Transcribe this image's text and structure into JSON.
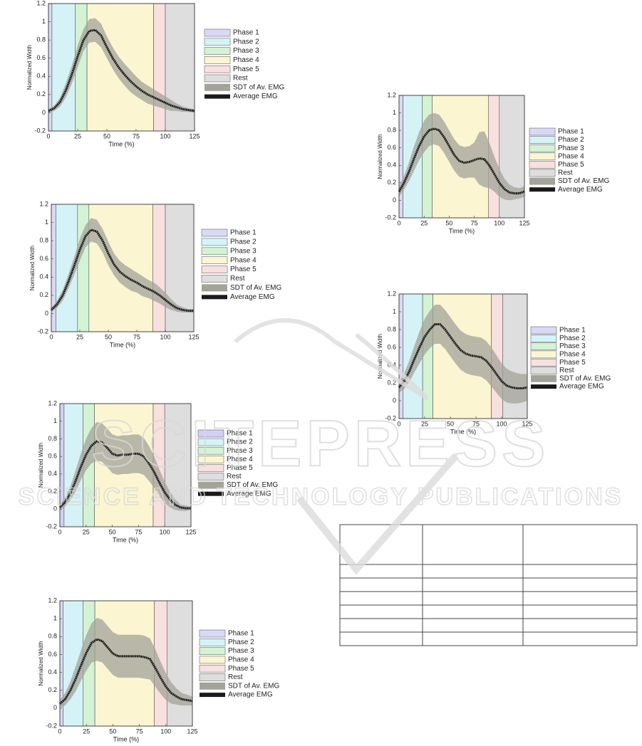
{
  "chart_data": [
    {
      "type": "line",
      "x_label": "Time (%)",
      "y_label": "Normalized Width",
      "x": [
        0,
        5,
        10,
        15,
        20,
        25,
        30,
        35,
        40,
        45,
        50,
        55,
        60,
        65,
        70,
        75,
        80,
        85,
        90,
        95,
        100,
        105,
        110,
        115,
        120,
        125
      ],
      "xlim": [
        0,
        125
      ],
      "ylim": [
        -0.2,
        1.2
      ],
      "xticks": [
        0,
        25,
        50,
        75,
        100,
        125
      ],
      "yticks": [
        -0.2,
        0,
        0.2,
        0.4,
        0.6,
        0.8,
        1,
        1.2
      ],
      "regions": {
        "names": [
          "Phase 1",
          "Phase 2",
          "Phase 3",
          "Phase 4",
          "Phase 5",
          "Rest"
        ],
        "colors": [
          "#d9d9f7",
          "#d5f3f6",
          "#d4f2d4",
          "#fbf6d1",
          "#f8e0de",
          "#dedede"
        ],
        "edges": [
          0,
          3,
          23,
          33,
          90,
          100,
          125
        ]
      },
      "band": {
        "name": "SDT of Av. EMG",
        "color": "#a3a39a",
        "values": [
          0.02,
          0.03,
          0.05,
          0.08,
          0.1,
          0.12,
          0.12,
          0.13,
          0.13,
          0.13,
          0.12,
          0.12,
          0.12,
          0.12,
          0.12,
          0.11,
          0.1,
          0.1,
          0.09,
          0.08,
          0.07,
          0.06,
          0.04,
          0.03,
          0.02,
          0.02
        ]
      },
      "series": [
        {
          "name": "Average EMG",
          "color": "#1a1a1a",
          "values": [
            0.02,
            0.05,
            0.12,
            0.25,
            0.42,
            0.62,
            0.8,
            0.9,
            0.91,
            0.85,
            0.72,
            0.6,
            0.5,
            0.42,
            0.35,
            0.29,
            0.24,
            0.2,
            0.17,
            0.14,
            0.11,
            0.08,
            0.06,
            0.04,
            0.03,
            0.02
          ]
        }
      ]
    },
    {
      "type": "line",
      "x_label": "Time (%)",
      "y_label": "Normalized Width",
      "x": [
        0,
        5,
        10,
        15,
        20,
        25,
        30,
        35,
        40,
        45,
        50,
        55,
        60,
        65,
        70,
        75,
        80,
        85,
        90,
        95,
        100,
        105,
        110,
        115,
        120,
        125
      ],
      "xlim": [
        0,
        125
      ],
      "ylim": [
        -0.2,
        1.2
      ],
      "xticks": [
        0,
        25,
        50,
        75,
        100,
        125
      ],
      "yticks": [
        -0.2,
        0,
        0.2,
        0.4,
        0.6,
        0.8,
        1,
        1.2
      ],
      "regions": {
        "names": [
          "Phase 1",
          "Phase 2",
          "Phase 3",
          "Phase 4",
          "Phase 5",
          "Rest"
        ],
        "colors": [
          "#d9d9f7",
          "#d5f3f6",
          "#d4f2d4",
          "#fbf6d1",
          "#f8e0de",
          "#dedede"
        ],
        "edges": [
          0,
          4,
          23,
          33,
          89,
          100,
          125
        ]
      },
      "band": {
        "name": "SDT of Av. EMG",
        "color": "#a3a39a",
        "values": [
          0.02,
          0.04,
          0.06,
          0.08,
          0.1,
          0.12,
          0.12,
          0.13,
          0.13,
          0.13,
          0.13,
          0.12,
          0.12,
          0.12,
          0.12,
          0.11,
          0.11,
          0.1,
          0.1,
          0.09,
          0.08,
          0.06,
          0.04,
          0.03,
          0.02,
          0.02
        ]
      },
      "series": [
        {
          "name": "Average EMG",
          "color": "#1a1a1a",
          "values": [
            0.04,
            0.1,
            0.2,
            0.35,
            0.52,
            0.7,
            0.85,
            0.92,
            0.9,
            0.8,
            0.66,
            0.54,
            0.46,
            0.41,
            0.37,
            0.34,
            0.3,
            0.27,
            0.24,
            0.2,
            0.15,
            0.1,
            0.06,
            0.04,
            0.03,
            0.03
          ]
        }
      ]
    },
    {
      "type": "line",
      "x_label": "Time (%)",
      "y_label": "Normalized Width",
      "x": [
        0,
        5,
        10,
        15,
        20,
        25,
        30,
        35,
        40,
        45,
        50,
        55,
        60,
        65,
        70,
        75,
        80,
        85,
        90,
        95,
        100,
        105,
        110,
        115,
        120,
        125
      ],
      "xlim": [
        0,
        125
      ],
      "ylim": [
        -0.2,
        1.2
      ],
      "xticks": [
        0,
        25,
        50,
        75,
        100,
        125
      ],
      "yticks": [
        -0.2,
        0,
        0.2,
        0.4,
        0.6,
        0.8,
        1,
        1.2
      ],
      "regions": {
        "names": [
          "Phase 1",
          "Phase 2",
          "Phase 3",
          "Phase 4",
          "Phase 5",
          "Rest"
        ],
        "colors": [
          "#d2d0f2",
          "#d5f3f6",
          "#d4f2d4",
          "#fbf6d1",
          "#f8e0de",
          "#dedede"
        ],
        "edges": [
          0,
          4,
          22,
          33,
          89,
          100,
          125
        ]
      },
      "band": {
        "name": "SDT of Av. EMG",
        "color": "#a3a39a",
        "values": [
          0.03,
          0.05,
          0.08,
          0.12,
          0.15,
          0.18,
          0.2,
          0.22,
          0.22,
          0.22,
          0.22,
          0.22,
          0.22,
          0.22,
          0.22,
          0.22,
          0.21,
          0.2,
          0.18,
          0.15,
          0.12,
          0.09,
          0.06,
          0.04,
          0.03,
          0.02
        ]
      },
      "series": [
        {
          "name": "Average EMG",
          "color": "#1a1a1a",
          "values": [
            0.02,
            0.08,
            0.18,
            0.32,
            0.48,
            0.62,
            0.72,
            0.77,
            0.76,
            0.7,
            0.63,
            0.61,
            0.62,
            0.62,
            0.63,
            0.63,
            0.6,
            0.52,
            0.42,
            0.3,
            0.19,
            0.11,
            0.05,
            0.02,
            0.01,
            0.01
          ]
        }
      ]
    },
    {
      "type": "line",
      "x_label": "Time (%)",
      "y_label": "Normalized Width",
      "x": [
        0,
        5,
        10,
        15,
        20,
        25,
        30,
        35,
        40,
        45,
        50,
        55,
        60,
        65,
        70,
        75,
        80,
        85,
        90,
        95,
        100,
        105,
        110,
        115,
        120,
        125
      ],
      "xlim": [
        0,
        125
      ],
      "ylim": [
        -0.2,
        1.2
      ],
      "xticks": [
        0,
        25,
        50,
        75,
        100,
        125
      ],
      "yticks": [
        -0.2,
        0,
        0.2,
        0.4,
        0.6,
        0.8,
        1,
        1.2
      ],
      "regions": {
        "names": [
          "Phase 1",
          "Phase 2",
          "Phase 3",
          "Phase 4",
          "Phase 5",
          "Rest"
        ],
        "colors": [
          "#d9d9f7",
          "#d5f3f6",
          "#d4f2d4",
          "#fbf6d1",
          "#f8e0de",
          "#dedede"
        ],
        "edges": [
          0,
          3,
          22,
          33,
          89,
          101,
          125
        ]
      },
      "band": {
        "name": "SDT of Av. EMG",
        "color": "#a3a39a",
        "values": [
          0.04,
          0.07,
          0.1,
          0.14,
          0.17,
          0.2,
          0.22,
          0.24,
          0.24,
          0.24,
          0.24,
          0.24,
          0.24,
          0.24,
          0.24,
          0.24,
          0.24,
          0.23,
          0.21,
          0.18,
          0.15,
          0.12,
          0.09,
          0.07,
          0.06,
          0.05
        ]
      },
      "series": [
        {
          "name": "Average EMG",
          "color": "#1a1a1a",
          "values": [
            0.05,
            0.1,
            0.2,
            0.33,
            0.48,
            0.62,
            0.73,
            0.77,
            0.75,
            0.68,
            0.61,
            0.58,
            0.58,
            0.58,
            0.58,
            0.58,
            0.57,
            0.55,
            0.45,
            0.34,
            0.24,
            0.17,
            0.13,
            0.1,
            0.09,
            0.08
          ]
        }
      ]
    },
    {
      "type": "line",
      "x_label": "Time (%)",
      "y_label": "Normalized Width",
      "x": [
        0,
        5,
        10,
        15,
        20,
        25,
        30,
        35,
        40,
        45,
        50,
        55,
        60,
        65,
        70,
        75,
        80,
        85,
        90,
        95,
        100,
        105,
        110,
        115,
        120,
        125
      ],
      "xlim": [
        0,
        125
      ],
      "ylim": [
        -0.2,
        1.2
      ],
      "xticks": [
        0,
        25,
        50,
        75,
        100,
        125
      ],
      "yticks": [
        -0.2,
        0,
        0.2,
        0.4,
        0.6,
        0.8,
        1,
        1.2
      ],
      "regions": {
        "names": [
          "Phase 1",
          "Phase 2",
          "Phase 3",
          "Phase 4",
          "Phase 5",
          "Rest"
        ],
        "colors": [
          "#d9d9f7",
          "#d5f3f6",
          "#d4f2d4",
          "#fbf6d1",
          "#f8e0de",
          "#dedede"
        ],
        "edges": [
          0,
          4,
          23,
          33,
          89,
          100,
          125
        ]
      },
      "band": {
        "name": "SDT of Av. EMG",
        "color": "#a3a39a",
        "values": [
          0.06,
          0.08,
          0.11,
          0.14,
          0.16,
          0.18,
          0.18,
          0.18,
          0.18,
          0.18,
          0.18,
          0.18,
          0.18,
          0.18,
          0.18,
          0.2,
          0.3,
          0.32,
          0.26,
          0.2,
          0.16,
          0.12,
          0.09,
          0.07,
          0.06,
          0.06
        ]
      },
      "series": [
        {
          "name": "Average EMG",
          "color": "#1a1a1a",
          "values": [
            0.1,
            0.2,
            0.33,
            0.48,
            0.62,
            0.73,
            0.8,
            0.82,
            0.8,
            0.72,
            0.62,
            0.52,
            0.45,
            0.43,
            0.44,
            0.46,
            0.48,
            0.47,
            0.4,
            0.3,
            0.2,
            0.13,
            0.09,
            0.08,
            0.08,
            0.1
          ]
        }
      ]
    },
    {
      "type": "line",
      "x_label": "Time (%)",
      "y_label": "Normalized Width",
      "x": [
        0,
        5,
        10,
        15,
        20,
        25,
        30,
        35,
        40,
        45,
        50,
        55,
        60,
        65,
        70,
        75,
        80,
        85,
        90,
        95,
        100,
        105,
        110,
        115,
        120,
        125
      ],
      "xlim": [
        0,
        125
      ],
      "ylim": [
        -0.2,
        1.2
      ],
      "xticks": [
        0,
        25,
        50,
        75,
        100,
        125
      ],
      "yticks": [
        -0.2,
        0,
        0.2,
        0.4,
        0.6,
        0.8,
        1,
        1.2
      ],
      "regions": {
        "names": [
          "Phase 1",
          "Phase 2",
          "Phase 3",
          "Phase 4",
          "Phase 5",
          "Rest"
        ],
        "colors": [
          "#d9d9f7",
          "#d5f3f6",
          "#d4f2d4",
          "#fbf6d1",
          "#f8e0de",
          "#dedede"
        ],
        "edges": [
          0,
          4,
          23,
          33,
          90,
          101,
          125
        ]
      },
      "band": {
        "name": "SDT of Av. EMG",
        "color": "#a3a39a",
        "values": [
          0.06,
          0.09,
          0.12,
          0.15,
          0.18,
          0.2,
          0.21,
          0.22,
          0.22,
          0.22,
          0.22,
          0.22,
          0.22,
          0.22,
          0.22,
          0.22,
          0.22,
          0.22,
          0.22,
          0.21,
          0.2,
          0.19,
          0.18,
          0.17,
          0.16,
          0.15
        ]
      },
      "series": [
        {
          "name": "Average EMG",
          "color": "#1a1a1a",
          "values": [
            0.15,
            0.22,
            0.33,
            0.47,
            0.6,
            0.72,
            0.8,
            0.86,
            0.86,
            0.8,
            0.72,
            0.64,
            0.57,
            0.53,
            0.51,
            0.5,
            0.49,
            0.45,
            0.38,
            0.3,
            0.22,
            0.17,
            0.15,
            0.14,
            0.14,
            0.15
          ]
        }
      ]
    }
  ],
  "watermark": {
    "line1": "SCITEPRESS",
    "line2": "SCIENCE AND TECHNOLOGY PUBLICATIONS"
  }
}
